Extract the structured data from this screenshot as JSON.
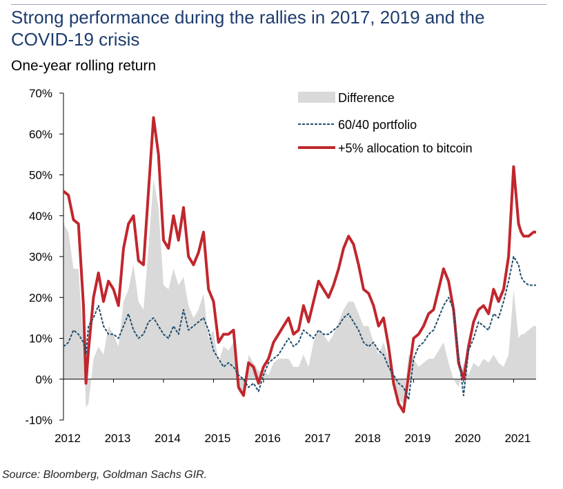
{
  "header": {
    "title": "Strong performance during the rallies in 2017, 2019 and the COVID-19 crisis",
    "subtitle": "One-year rolling return"
  },
  "footer": {
    "source": "Source: Bloomberg, Goldman Sachs GIR."
  },
  "colors": {
    "difference": "#d9d9d9",
    "portfolio": "#1f4e6e",
    "bitcoin": "#c0272d"
  },
  "chart_data": {
    "type": "line",
    "title": "Strong performance during the rallies in 2017, 2019 and the COVID-19 crisis",
    "subtitle": "One-year rolling return",
    "x_tick_labels": [
      "2012",
      "2013",
      "2014",
      "2015",
      "2016",
      "2017",
      "2018",
      "2019",
      "2020",
      "2021"
    ],
    "y_tick_labels": [
      "70%",
      "60%",
      "50%",
      "40%",
      "30%",
      "20%",
      "10%",
      "0%",
      "-10%"
    ],
    "ylim": [
      -10,
      70
    ],
    "xlim": [
      2012.0,
      2021.45
    ],
    "legend": {
      "placement": "top-right",
      "entries": [
        "Difference",
        "60/40 portfolio",
        "+5% allocation to bitcoin"
      ]
    },
    "grid": false,
    "x": [
      2012.0,
      2012.1,
      2012.2,
      2012.3,
      2012.4,
      2012.45,
      2012.5,
      2012.6,
      2012.7,
      2012.8,
      2012.9,
      2013.0,
      2013.1,
      2013.2,
      2013.3,
      2013.4,
      2013.5,
      2013.6,
      2013.7,
      2013.8,
      2013.9,
      2014.0,
      2014.1,
      2014.2,
      2014.3,
      2014.4,
      2014.5,
      2014.6,
      2014.7,
      2014.8,
      2014.9,
      2015.0,
      2015.1,
      2015.2,
      2015.3,
      2015.4,
      2015.5,
      2015.6,
      2015.7,
      2015.8,
      2015.9,
      2016.0,
      2016.1,
      2016.2,
      2016.3,
      2016.4,
      2016.5,
      2016.6,
      2016.7,
      2016.8,
      2016.9,
      2017.0,
      2017.1,
      2017.2,
      2017.3,
      2017.4,
      2017.5,
      2017.6,
      2017.7,
      2017.8,
      2017.9,
      2018.0,
      2018.1,
      2018.2,
      2018.3,
      2018.4,
      2018.5,
      2018.6,
      2018.7,
      2018.8,
      2018.9,
      2019.0,
      2019.1,
      2019.2,
      2019.3,
      2019.4,
      2019.5,
      2019.6,
      2019.7,
      2019.8,
      2019.9,
      2020.0,
      2020.1,
      2020.2,
      2020.3,
      2020.4,
      2020.5,
      2020.6,
      2020.7,
      2020.8,
      2020.9,
      2021.0,
      2021.1,
      2021.15,
      2021.2,
      2021.3,
      2021.4,
      2021.45
    ],
    "series": [
      {
        "name": "+5% allocation to bitcoin",
        "values": [
          46,
          45,
          39,
          38,
          18,
          -1,
          7,
          20,
          26,
          19,
          24,
          22,
          18,
          32,
          38,
          40,
          29,
          28,
          46,
          64,
          55,
          34,
          32,
          40,
          34,
          42,
          30,
          28,
          31,
          36,
          22,
          19,
          9,
          11,
          11,
          12,
          -2,
          -4,
          4,
          3,
          -1,
          3,
          5,
          9,
          11,
          13,
          15,
          11,
          12,
          18,
          14,
          19,
          24,
          22,
          20,
          23,
          27,
          32,
          35,
          33,
          28,
          22,
          21,
          18,
          13,
          15,
          8,
          -1,
          -6,
          -8,
          1,
          10,
          11,
          13,
          16,
          17,
          22,
          27,
          24,
          17,
          4,
          0,
          8,
          14,
          17,
          18,
          16,
          22,
          19,
          22,
          30,
          52,
          38,
          36,
          35,
          35,
          36,
          36
        ]
      },
      {
        "name": "60/40 portfolio",
        "values": [
          8,
          9,
          12,
          11,
          9,
          6,
          13,
          15,
          18,
          13,
          11,
          11,
          10,
          13,
          16,
          12,
          10,
          11,
          14,
          15,
          13,
          11,
          10,
          13,
          11,
          17,
          12,
          13,
          14,
          15,
          12,
          7,
          5,
          3,
          4,
          3,
          1,
          0,
          -2,
          -1,
          -3,
          1,
          4,
          5,
          6,
          8,
          10,
          8,
          9,
          12,
          11,
          10,
          12,
          11,
          11,
          12,
          13,
          15,
          16,
          14,
          12,
          9,
          8,
          9,
          7,
          6,
          3,
          1,
          -1,
          -2,
          -5,
          5,
          8,
          9,
          11,
          12,
          15,
          18,
          20,
          17,
          6,
          -4,
          7,
          10,
          14,
          13,
          12,
          16,
          15,
          19,
          24,
          30,
          28,
          25,
          24,
          23,
          23,
          23
        ]
      },
      {
        "name": "Difference",
        "values": [
          38,
          36,
          27,
          27,
          9,
          -7,
          -6,
          5,
          8,
          6,
          13,
          11,
          8,
          19,
          22,
          28,
          19,
          17,
          32,
          49,
          42,
          23,
          22,
          27,
          23,
          25,
          18,
          15,
          17,
          21,
          10,
          12,
          4,
          8,
          7,
          9,
          -3,
          -4,
          6,
          4,
          2,
          2,
          1,
          4,
          5,
          5,
          5,
          3,
          3,
          6,
          3,
          9,
          12,
          11,
          9,
          11,
          14,
          17,
          19,
          19,
          16,
          13,
          13,
          9,
          6,
          9,
          5,
          -2,
          -5,
          -6,
          6,
          5,
          3,
          4,
          5,
          5,
          7,
          9,
          4,
          0,
          -2,
          4,
          1,
          4,
          3,
          5,
          4,
          6,
          4,
          3,
          6,
          22,
          10,
          11,
          11,
          12,
          13,
          13
        ]
      }
    ]
  }
}
